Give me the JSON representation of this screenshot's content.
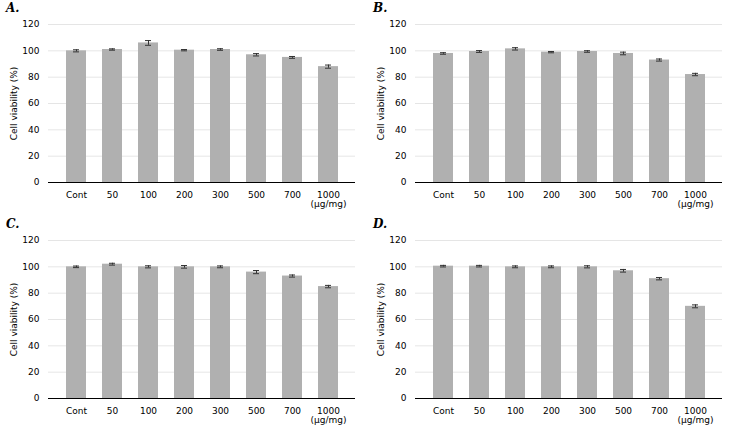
{
  "chart_data": [
    {
      "type": "bar",
      "title": "A.",
      "ylabel": "Cell viability (%)",
      "categories": [
        "Cont",
        "50",
        "100",
        "200",
        "300",
        "500",
        "700",
        "1000\n(μg/mg)"
      ],
      "values": [
        100.0,
        101.0,
        106.0,
        100.5,
        101.0,
        97.0,
        95.0,
        88.0
      ],
      "errors": [
        0.8,
        0.5,
        1.8,
        0.5,
        0.6,
        0.9,
        0.7,
        1.2
      ],
      "ylim": [
        0,
        120
      ],
      "yticks": [
        0,
        20,
        40,
        60,
        80,
        100,
        120
      ],
      "color": "#b0b0b0",
      "grid": true
    },
    {
      "type": "bar",
      "title": "B.",
      "ylabel": "Cell viability (%)",
      "categories": [
        "Cont",
        "50",
        "100",
        "200",
        "300",
        "500",
        "700",
        "1000\n(μg/mg)"
      ],
      "values": [
        98.0,
        99.5,
        101.5,
        99.0,
        99.5,
        98.0,
        93.0,
        82.0
      ],
      "errors": [
        0.6,
        0.7,
        0.9,
        0.5,
        0.6,
        1.0,
        0.8,
        0.9
      ],
      "ylim": [
        0,
        120
      ],
      "yticks": [
        0,
        20,
        40,
        60,
        80,
        100,
        120
      ],
      "color": "#b0b0b0",
      "grid": true
    },
    {
      "type": "bar",
      "title": "C.",
      "ylabel": "Cell viability (%)",
      "categories": [
        "Cont",
        "50",
        "100",
        "200",
        "300",
        "500",
        "700",
        "1000\n(μg/mg)"
      ],
      "values": [
        100.0,
        102.0,
        100.0,
        100.0,
        100.0,
        96.0,
        93.0,
        85.0
      ],
      "errors": [
        0.6,
        0.7,
        0.8,
        1.0,
        0.7,
        1.2,
        0.8,
        0.9
      ],
      "ylim": [
        0,
        120
      ],
      "yticks": [
        0,
        20,
        40,
        60,
        80,
        100,
        120
      ],
      "color": "#b0b0b0",
      "grid": true
    },
    {
      "type": "bar",
      "title": "D.",
      "ylabel": "Cell viability (%)",
      "categories": [
        "Cont",
        "50",
        "100",
        "200",
        "300",
        "500",
        "700",
        "1000\n(μg/mg)"
      ],
      "values": [
        100.5,
        100.5,
        100.0,
        100.0,
        100.0,
        97.0,
        91.0,
        70.0
      ],
      "errors": [
        0.6,
        0.6,
        0.7,
        0.7,
        0.8,
        1.0,
        0.9,
        1.1
      ],
      "ylim": [
        0,
        120
      ],
      "yticks": [
        0,
        20,
        40,
        60,
        80,
        100,
        120
      ],
      "color": "#b0b0b0",
      "grid": true
    }
  ]
}
